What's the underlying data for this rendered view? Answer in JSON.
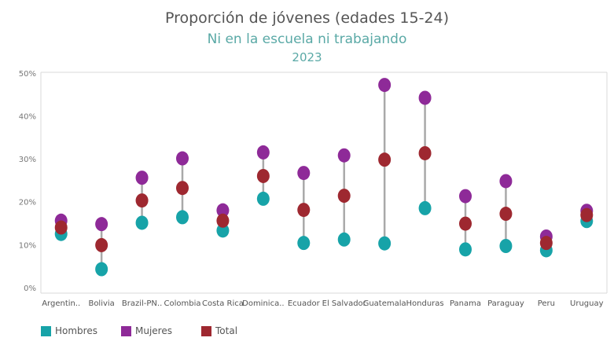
{
  "title": "Proporción de jóvenes (edades  15-24)",
  "subtitle": "Ni en la escuela ni trabajando",
  "year": "2023",
  "colors": {
    "hombres": "#17a3a8",
    "mujeres": "#8e2a98",
    "total": "#9e2830",
    "connector": "#a9a9a9",
    "axis": "#d9d9d9"
  },
  "legend": [
    {
      "label": "Hombres",
      "color": "#17a3a8"
    },
    {
      "label": "Mujeres",
      "color": "#8e2a98"
    },
    {
      "label": "Total",
      "color": "#9e2830"
    }
  ],
  "chart_data": {
    "type": "scatter",
    "categories": [
      "Argentin..",
      "Bolivia",
      "Brazil-PN..",
      "Colombia",
      "Costa Rica",
      "Dominica..",
      "Ecuador",
      "El Salvador",
      "Guatemala",
      "Honduras",
      "Panama",
      "Paraguay",
      "Peru",
      "Uruguay"
    ],
    "series": [
      {
        "name": "Hombres",
        "values": [
          12.5,
          4.3,
          15.1,
          16.4,
          13.3,
          20.7,
          10.4,
          11.2,
          10.3,
          18.5,
          8.9,
          9.7,
          8.7,
          15.5
        ]
      },
      {
        "name": "Mujeres",
        "values": [
          15.6,
          14.8,
          25.6,
          30.1,
          18.0,
          31.5,
          26.7,
          30.8,
          47.2,
          44.2,
          21.3,
          24.8,
          11.9,
          17.9
        ]
      },
      {
        "name": "Total",
        "values": [
          14.0,
          9.9,
          20.3,
          23.2,
          15.6,
          26.0,
          18.1,
          21.4,
          29.8,
          31.3,
          14.9,
          17.2,
          10.4,
          16.9
        ]
      }
    ],
    "y_ticks": [
      "0%",
      "10%",
      "20%",
      "30%",
      "40%",
      "50%"
    ],
    "ylim": [
      0,
      50
    ],
    "grid": false
  }
}
